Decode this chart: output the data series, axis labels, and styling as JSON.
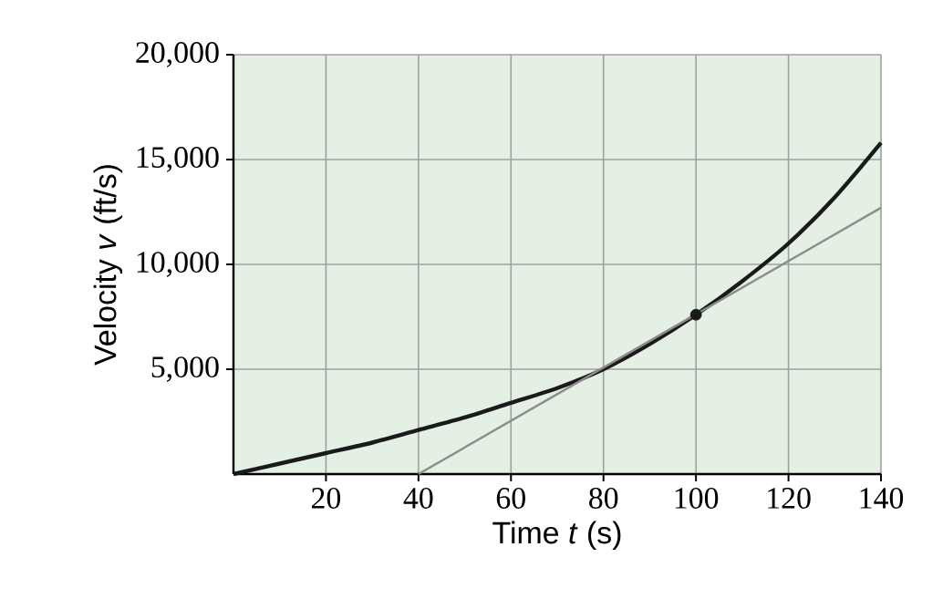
{
  "chart_data": {
    "type": "line",
    "xlabel": "Time *t* (s)",
    "ylabel": "Velocity *v* (ft/s)",
    "xlim": [
      0,
      140
    ],
    "ylim": [
      0,
      20000
    ],
    "xticks": [
      20,
      40,
      60,
      80,
      100,
      120,
      140
    ],
    "yticks": [
      {
        "value": 5000,
        "label": "5,000"
      },
      {
        "value": 10000,
        "label": "10,000"
      },
      {
        "value": 15000,
        "label": "15,000"
      },
      {
        "value": 20000,
        "label": "20,000"
      }
    ],
    "grid": true,
    "line_style": "solid",
    "series": [
      {
        "color": "#1a1a1a",
        "x": [
          0,
          10,
          20,
          30,
          40,
          50,
          60,
          70,
          80,
          90,
          100,
          110,
          120,
          130,
          140
        ],
        "values": [
          0,
          500,
          1000,
          1500,
          2100,
          2700,
          3400,
          4100,
          5000,
          6200,
          7600,
          9200,
          11000,
          13200,
          15800
        ]
      },
      {
        "color": "#8c8c8c",
        "x": [
          40,
          140
        ],
        "values": [
          0,
          12700
        ]
      },
      {
        "type": "scatter",
        "color": "#1a1a1a",
        "x": [
          100
        ],
        "values": [
          7600
        ]
      }
    ]
  }
}
